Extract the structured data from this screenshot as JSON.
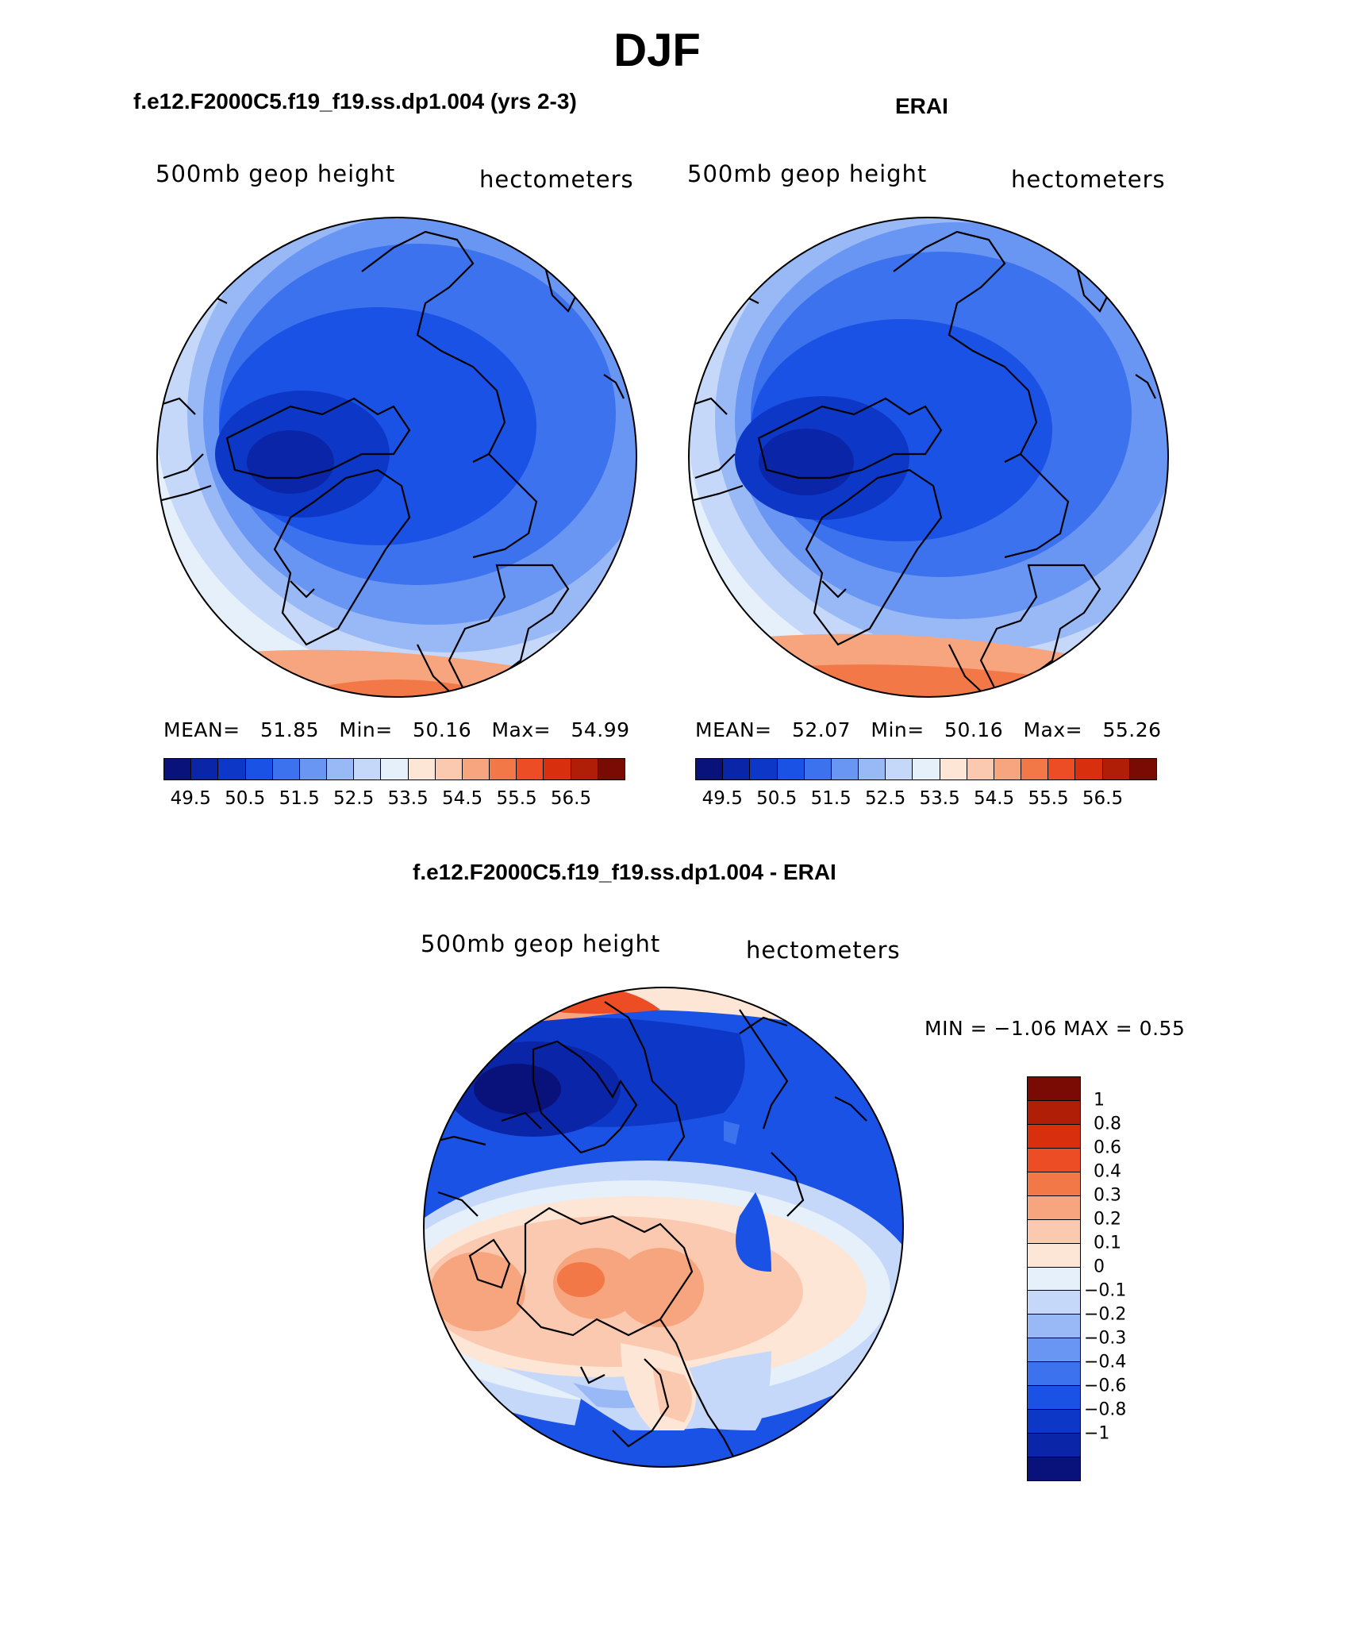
{
  "figure": {
    "title": "DJF",
    "field_label": "500mb geop height",
    "units_label": "hectometers"
  },
  "colors": {
    "abs_scale": [
      "#08127a",
      "#0a25a8",
      "#0d38c7",
      "#1b52e6",
      "#3d72ee",
      "#6a96f3",
      "#99b8f6",
      "#c6d8f9",
      "#e6f0fb",
      "#fde6d6",
      "#fbc9b0",
      "#f6a57e",
      "#f37848",
      "#ec4d24",
      "#d8300e",
      "#b11e08",
      "#7a0a04"
    ],
    "diff_scale": [
      "#08127a",
      "#0a25a8",
      "#0d38c7",
      "#1b52e6",
      "#3d72ee",
      "#6a96f3",
      "#99b8f6",
      "#c6d8f9",
      "#e6f0fb",
      "#fde6d6",
      "#fbc9b0",
      "#f6a57e",
      "#f37848",
      "#ec4d24",
      "#d8300e",
      "#b11e08",
      "#7a0a04"
    ]
  },
  "panels": [
    {
      "title": "f.e12.F2000C5.f19_f19.ss.dp1.004 (yrs 2-3)",
      "stats": {
        "mean_label": "MEAN=",
        "mean": "51.85",
        "min_label": "Min=",
        "min": "50.16",
        "max_label": "Max=",
        "max": "54.99"
      },
      "ticks": [
        "49.5",
        "50.5",
        "51.5",
        "52.5",
        "53.5",
        "54.5",
        "55.5",
        "56.5"
      ]
    },
    {
      "title": "ERAI",
      "stats": {
        "mean_label": "MEAN=",
        "mean": "52.07",
        "min_label": "Min=",
        "min": "50.16",
        "max_label": "Max=",
        "max": "55.26"
      },
      "ticks": [
        "49.5",
        "50.5",
        "51.5",
        "52.5",
        "53.5",
        "54.5",
        "55.5",
        "56.5"
      ]
    },
    {
      "title": "f.e12.F2000C5.f19_f19.ss.dp1.004 - ERAI",
      "minmax": "MIN =   −1.06 MAX =    0.55",
      "ticks": [
        "1",
        "0.8",
        "0.6",
        "0.4",
        "0.3",
        "0.2",
        "0.1",
        "0",
        "−0.1",
        "−0.2",
        "−0.3",
        "−0.4",
        "−0.6",
        "−0.8",
        "−1"
      ]
    }
  ]
}
